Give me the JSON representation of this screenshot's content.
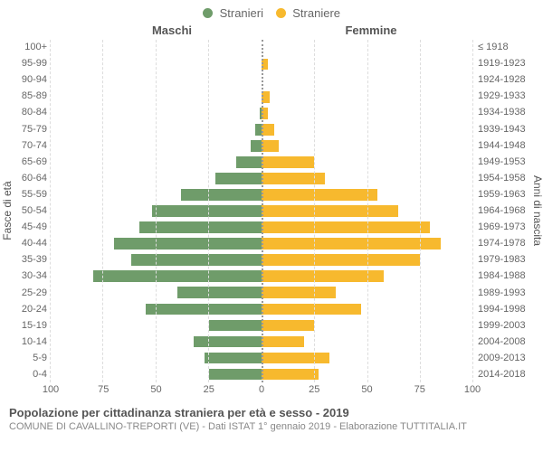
{
  "legend": {
    "male": {
      "label": "Stranieri",
      "color": "#6f9c6a"
    },
    "female": {
      "label": "Straniere",
      "color": "#f7b92e"
    }
  },
  "headers": {
    "left": "Maschi",
    "right": "Femmine"
  },
  "axis_labels": {
    "left": "Fasce di età",
    "right": "Anni di nascita"
  },
  "age_bands": [
    "100+",
    "95-99",
    "90-94",
    "85-89",
    "80-84",
    "75-79",
    "70-74",
    "65-69",
    "60-64",
    "55-59",
    "50-54",
    "45-49",
    "40-44",
    "35-39",
    "30-34",
    "25-29",
    "20-24",
    "15-19",
    "10-14",
    "5-9",
    "0-4"
  ],
  "birth_years": [
    "≤ 1918",
    "1919-1923",
    "1924-1928",
    "1929-1933",
    "1934-1938",
    "1939-1943",
    "1944-1948",
    "1949-1953",
    "1954-1958",
    "1959-1963",
    "1964-1968",
    "1969-1973",
    "1974-1978",
    "1979-1983",
    "1984-1988",
    "1989-1993",
    "1994-1998",
    "1999-2003",
    "2004-2008",
    "2009-2013",
    "2014-2018"
  ],
  "data": {
    "male": [
      0,
      0,
      0,
      0,
      1,
      3,
      5,
      12,
      22,
      38,
      52,
      58,
      70,
      62,
      80,
      40,
      55,
      25,
      32,
      27,
      25
    ],
    "female": [
      0,
      3,
      0,
      4,
      3,
      6,
      8,
      25,
      30,
      55,
      65,
      80,
      85,
      75,
      58,
      35,
      47,
      25,
      20,
      32,
      27
    ]
  },
  "xaxis": {
    "max": 100,
    "ticks": [
      100,
      75,
      50,
      25,
      0,
      25,
      50,
      75,
      100
    ]
  },
  "colors": {
    "male_fill": "#6f9c6a",
    "female_fill": "#f7b92e",
    "grid": "#e0e0e0",
    "centerline": "#999999",
    "bg": "#ffffff"
  },
  "footer": {
    "title": "Popolazione per cittadinanza straniera per età e sesso - 2019",
    "subtitle": "COMUNE DI CAVALLINO-TREPORTI (VE) - Dati ISTAT 1° gennaio 2019 - Elaborazione TUTTITALIA.IT"
  }
}
